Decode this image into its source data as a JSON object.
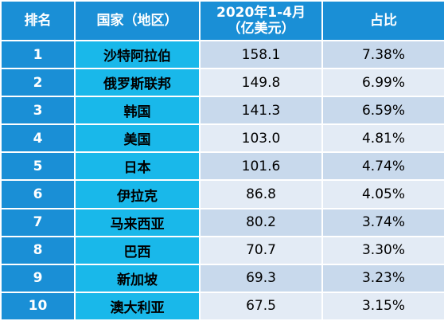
{
  "table": {
    "headers": {
      "rank": "排名",
      "country": "国家（地区）",
      "amount_line1": "2020年1-4月",
      "amount_line2": "（亿美元）",
      "share": "占比"
    },
    "rows": [
      {
        "rank": "1",
        "country": "沙特阿拉伯",
        "amount": "158.1",
        "share": "7.38%"
      },
      {
        "rank": "2",
        "country": "俄罗斯联邦",
        "amount": "149.8",
        "share": "6.99%"
      },
      {
        "rank": "3",
        "country": "韩国",
        "amount": "141.3",
        "share": "6.59%"
      },
      {
        "rank": "4",
        "country": "美国",
        "amount": "103.0",
        "share": "4.81%"
      },
      {
        "rank": "5",
        "country": "日本",
        "amount": "101.6",
        "share": "4.74%"
      },
      {
        "rank": "6",
        "country": "伊拉克",
        "amount": "86.8",
        "share": "4.05%"
      },
      {
        "rank": "7",
        "country": "马来西亚",
        "amount": "80.2",
        "share": "3.74%"
      },
      {
        "rank": "8",
        "country": "巴西",
        "amount": "70.7",
        "share": "3.30%"
      },
      {
        "rank": "9",
        "country": "新加坡",
        "amount": "69.3",
        "share": "3.23%"
      },
      {
        "rank": "10",
        "country": "澳大利亚",
        "amount": "67.5",
        "share": "3.15%"
      }
    ]
  },
  "colors": {
    "header_bg": "#1a8fd6",
    "rank_bg": "#1a8fd6",
    "country_bg": "#19b8ea",
    "row_odd_bg": "#c8d9ec",
    "row_even_bg": "#e3ebf5"
  }
}
